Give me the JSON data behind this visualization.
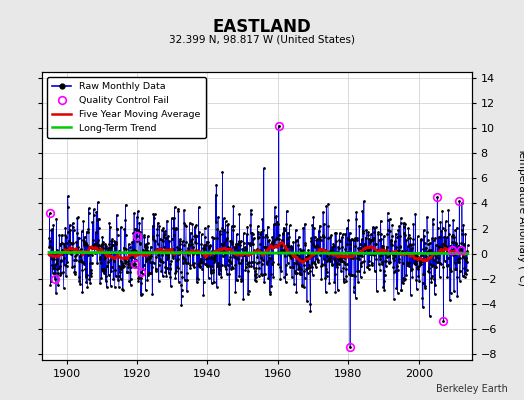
{
  "title": "EASTLAND",
  "subtitle": "32.399 N, 98.817 W (United States)",
  "ylabel_right": "Temperature Anomaly (°C)",
  "credit": "Berkeley Earth",
  "year_start": 1895,
  "year_end": 2013,
  "ylim": [
    -8.5,
    14.5
  ],
  "yticks": [
    -8,
    -6,
    -4,
    -2,
    0,
    2,
    4,
    6,
    8,
    10,
    12,
    14
  ],
  "xticks": [
    1900,
    1920,
    1940,
    1960,
    1980,
    2000
  ],
  "bg_color": "#e8e8e8",
  "plot_bg_color": "#ffffff",
  "raw_line_color": "#0000dd",
  "raw_dot_color": "#000000",
  "moving_avg_color": "#dd0000",
  "trend_color": "#00cc00",
  "qc_fail_color": "#ff00ff",
  "seed": 77
}
